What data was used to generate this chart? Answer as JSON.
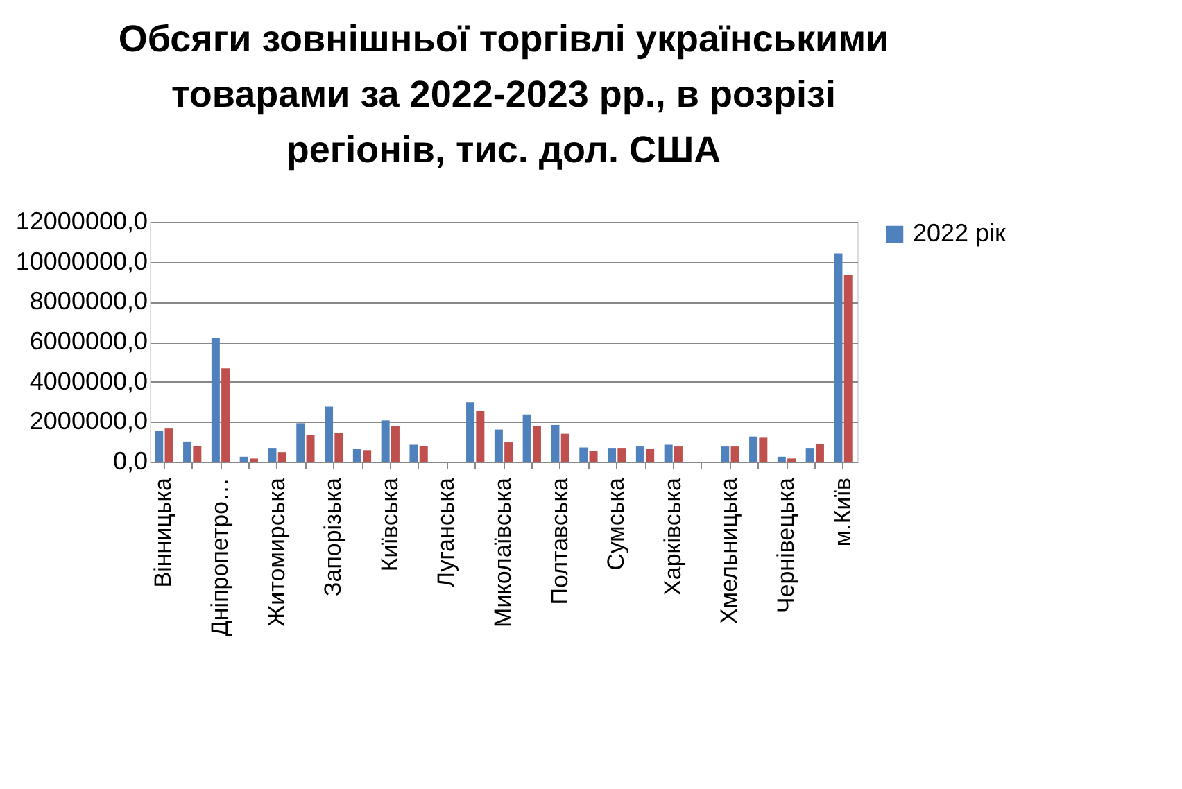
{
  "chart_data": {
    "type": "bar",
    "title": "Обсяги зовнішньої торгівлі українськими товарами за 2022-2023 рр., в розрізі регіонів, тис. дол. США",
    "categories": [
      "Вінницька",
      null,
      "Дніпропетро…",
      null,
      "Житомирська",
      null,
      "Запорізька",
      null,
      "Київська",
      null,
      "Луганська",
      null,
      "Миколаївська",
      null,
      "Полтавська",
      null,
      "Сумська",
      null,
      "Харківська",
      null,
      "Хмельницька",
      null,
      "Чернівецька",
      null,
      "м.Київ"
    ],
    "series": [
      {
        "name": "2022 рік",
        "color": "#4f81bd",
        "values": [
          1560000,
          1010000,
          6210000,
          250000,
          690000,
          1930000,
          2760000,
          640000,
          2070000,
          850000,
          0,
          2970000,
          1610000,
          2370000,
          1840000,
          710000,
          690000,
          760000,
          850000,
          null,
          760000,
          1260000,
          250000,
          690000,
          10420000
        ]
      },
      {
        "color": "#c0504d",
        "values": [
          1660000,
          800000,
          4670000,
          160000,
          480000,
          1330000,
          1430000,
          580000,
          1790000,
          780000,
          0,
          2530000,
          970000,
          1770000,
          1400000,
          550000,
          690000,
          640000,
          760000,
          null,
          760000,
          1200000,
          160000,
          870000,
          9360000
        ]
      }
    ],
    "ylim": [
      0,
      12000000
    ],
    "yticks": [
      {
        "value": 0,
        "label": "0,0"
      },
      {
        "value": 2000000,
        "label": "2000000,0"
      },
      {
        "value": 4000000,
        "label": "4000000,0"
      },
      {
        "value": 6000000,
        "label": "6000000,0"
      },
      {
        "value": 8000000,
        "label": "8000000,0"
      },
      {
        "value": 10000000,
        "label": "10000000,0"
      },
      {
        "value": 12000000,
        "label": "12000000,0"
      }
    ],
    "grid": "y",
    "legend": "right"
  }
}
